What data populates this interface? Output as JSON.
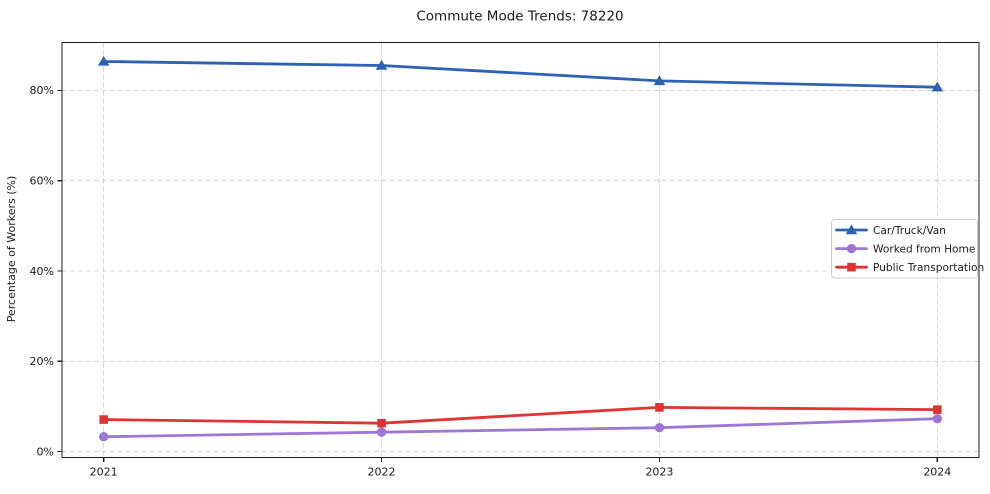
{
  "figure": {
    "background": "#ffffff",
    "text_color": "#1a1a1a",
    "spine_color": "#1f1f1f",
    "grid_color": "#d4d4d4"
  },
  "chart_data": {
    "type": "line",
    "title": "Commute Mode Trends: 78220",
    "xlabel": "",
    "ylabel": "Percentage of Workers (%)",
    "categories": [
      "2021",
      "2022",
      "2023",
      "2024"
    ],
    "series": [
      {
        "name": "Car/Truck/Van",
        "color": "#2d61b2",
        "marker": "triangle",
        "values": [
          86.4,
          85.5,
          82.1,
          80.7
        ]
      },
      {
        "name": "Worked from Home",
        "color": "#9e76d4",
        "marker": "circle",
        "values": [
          3.3,
          4.3,
          5.3,
          7.3
        ]
      },
      {
        "name": "Public Transportation",
        "color": "#de3434",
        "marker": "square",
        "values": [
          7.1,
          6.3,
          9.8,
          9.3
        ]
      }
    ],
    "yticks": [
      0,
      20,
      40,
      60,
      80
    ],
    "ytick_labels": [
      "0%",
      "20%",
      "40%",
      "60%",
      "80%"
    ],
    "ylim": [
      -1.3,
      90.6
    ],
    "x_margin_fraction": 0.15,
    "grid": true,
    "grid_style": "dashed",
    "legend": {
      "position": "center-right",
      "entries": [
        "Car/Truck/Van",
        "Worked from Home",
        "Public Transportation"
      ]
    }
  }
}
